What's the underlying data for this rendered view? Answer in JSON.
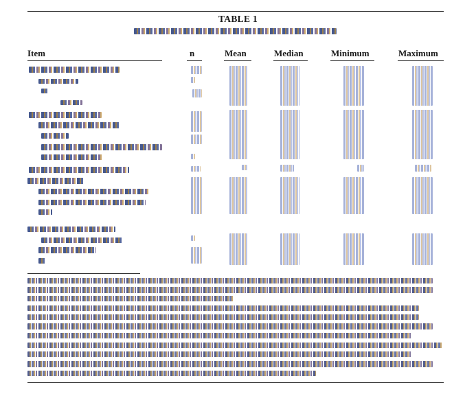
{
  "table": {
    "title": "TABLE 1",
    "columns": {
      "item": "Item",
      "n": "n",
      "mean": "Mean",
      "median": "Median",
      "minimum": "Minimum",
      "maximum": "Maximum"
    }
  }
}
